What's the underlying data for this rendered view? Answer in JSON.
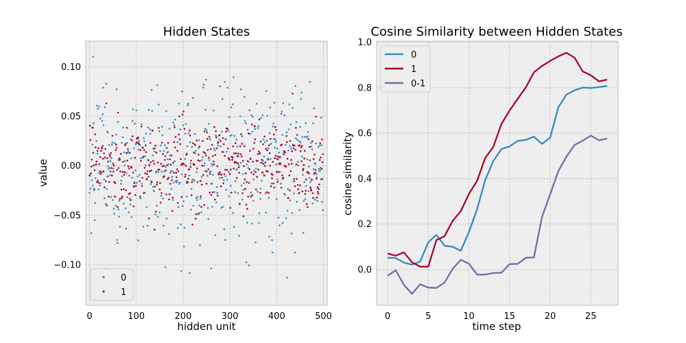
{
  "chart_data": [
    {
      "type": "scatter",
      "title": "Hidden States",
      "xlabel": "hidden unit",
      "ylabel": "value",
      "xlim": [
        -8,
        508
      ],
      "ylim": [
        -0.141,
        0.126
      ],
      "xticks": [
        0,
        100,
        200,
        300,
        400,
        500
      ],
      "xtick_labels": [
        "0",
        "100",
        "200",
        "300",
        "400",
        "500"
      ],
      "yticks": [
        -0.1,
        -0.05,
        0.0,
        0.05,
        0.1
      ],
      "ytick_labels": [
        "−0.10",
        "−0.05",
        "0.00",
        "0.05",
        "0.10"
      ],
      "grid": true,
      "legend_position": "lower-left",
      "series": [
        {
          "name": "0",
          "color": "#348abd",
          "n_points": 500,
          "spread": 0.04,
          "seed": 11
        },
        {
          "name": "1",
          "color": "#a60628",
          "n_points": 500,
          "spread": 0.022,
          "seed": 23
        }
      ]
    },
    {
      "type": "line",
      "title": "Cosine Similarity between Hidden States",
      "xlabel": "time step",
      "ylabel": "cosine similarity",
      "xlim": [
        -1.35,
        28.35
      ],
      "ylim": [
        -0.157,
        1.005
      ],
      "xticks": [
        0,
        5,
        10,
        15,
        20,
        25
      ],
      "xtick_labels": [
        "0",
        "5",
        "10",
        "15",
        "20",
        "25"
      ],
      "yticks": [
        0.0,
        0.2,
        0.4,
        0.6,
        0.8,
        1.0
      ],
      "ytick_labels": [
        "0.0",
        "0.2",
        "0.4",
        "0.6",
        "0.8",
        "1.0"
      ],
      "grid": true,
      "legend_position": "top-left",
      "x": [
        0,
        1,
        2,
        3,
        4,
        5,
        6,
        7,
        8,
        9,
        10,
        11,
        12,
        13,
        14,
        15,
        16,
        17,
        18,
        19,
        20,
        21,
        22,
        23,
        24,
        25,
        26,
        27
      ],
      "series": [
        {
          "name": "0",
          "color": "#348abd",
          "values": [
            0.052,
            0.051,
            0.031,
            0.022,
            0.035,
            0.12,
            0.153,
            0.105,
            0.1,
            0.083,
            0.165,
            0.265,
            0.393,
            0.478,
            0.53,
            0.542,
            0.566,
            0.571,
            0.585,
            0.553,
            0.581,
            0.714,
            0.77,
            0.789,
            0.801,
            0.799,
            0.803,
            0.808
          ]
        },
        {
          "name": "1",
          "color": "#a60628",
          "values": [
            0.071,
            0.061,
            0.076,
            0.032,
            0.013,
            0.013,
            0.13,
            0.147,
            0.214,
            0.257,
            0.333,
            0.39,
            0.49,
            0.54,
            0.64,
            0.7,
            0.751,
            0.802,
            0.868,
            0.896,
            0.918,
            0.938,
            0.954,
            0.932,
            0.872,
            0.855,
            0.828,
            0.836
          ]
        },
        {
          "name": "0-1",
          "color": "#7a68a6",
          "values": [
            -0.027,
            -0.003,
            -0.067,
            -0.107,
            -0.065,
            -0.079,
            -0.081,
            -0.057,
            0.003,
            0.043,
            0.026,
            -0.022,
            -0.022,
            -0.015,
            -0.014,
            0.024,
            0.025,
            0.052,
            0.054,
            0.232,
            0.332,
            0.433,
            0.497,
            0.548,
            0.567,
            0.589,
            0.569,
            0.576
          ]
        }
      ]
    }
  ]
}
